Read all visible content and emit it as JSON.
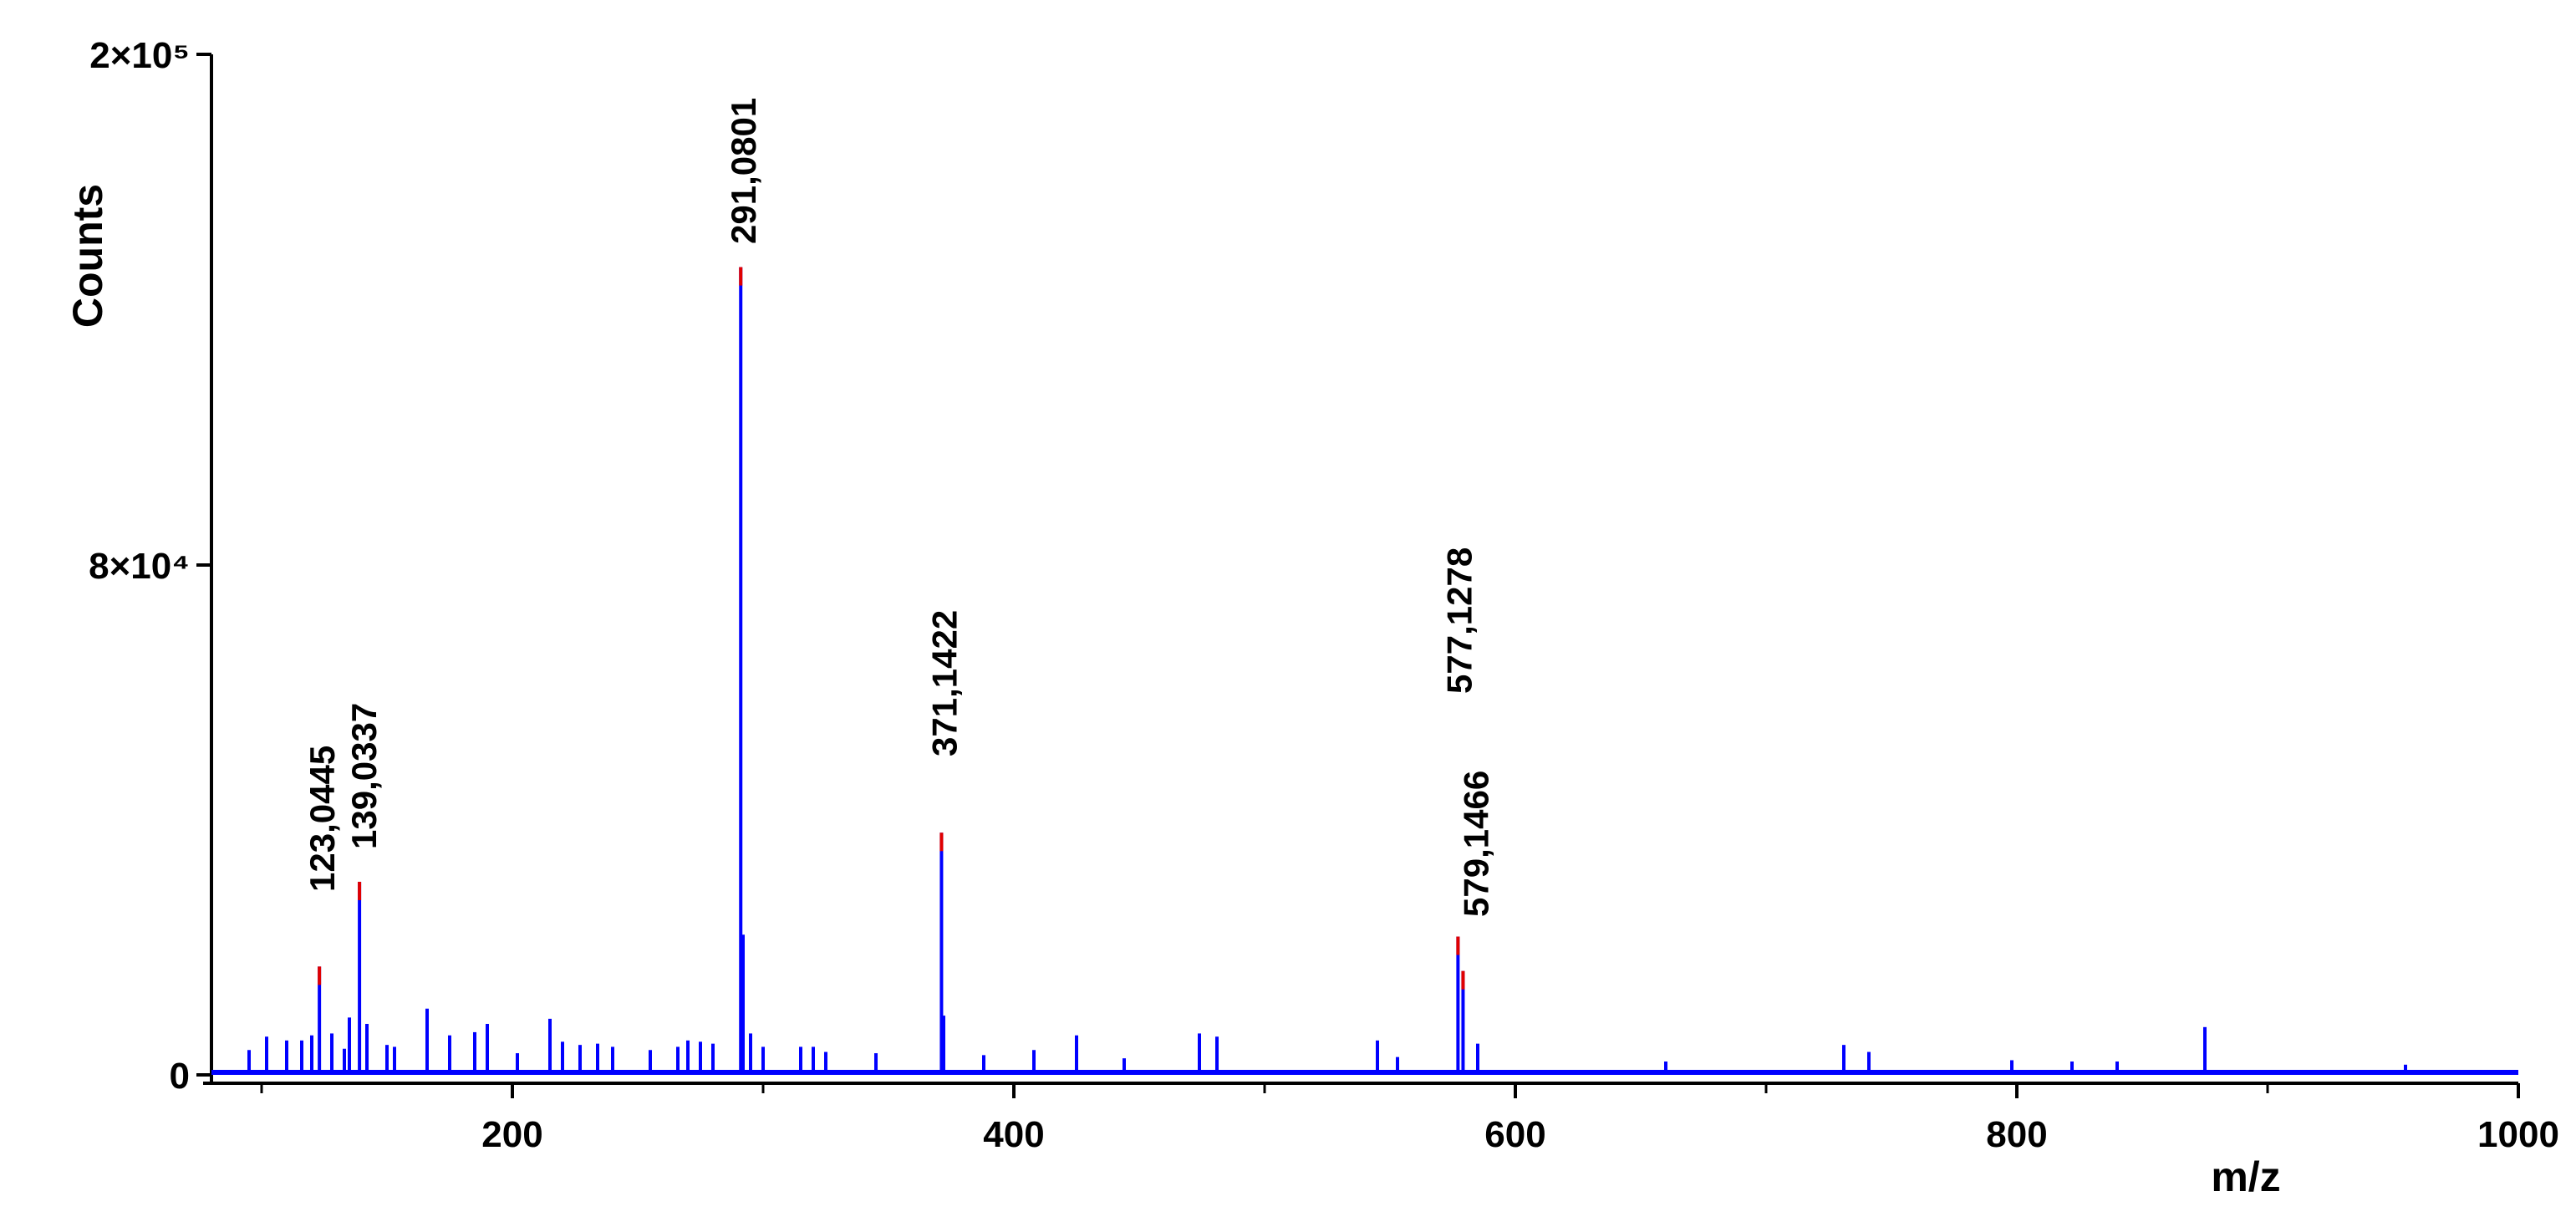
{
  "chart_data": {
    "type": "stick",
    "x_label": "m/z",
    "y_label": "Counts",
    "xlim": [
      80,
      1000
    ],
    "ylim": [
      0,
      200000
    ],
    "xticks": [
      200,
      400,
      600,
      800,
      1000
    ],
    "xminor_ticks": [
      100,
      300,
      500,
      700,
      900
    ],
    "yticks": [
      0,
      {
        "value": 80000,
        "label": "8×10⁴"
      },
      {
        "value": 200000,
        "label": "2×10⁵"
      }
    ],
    "color": "#0000ff",
    "apex_color": "#e00000",
    "x": [
      95,
      102,
      110,
      116,
      120,
      123.0445,
      128,
      133,
      135,
      139.0337,
      142,
      150,
      153,
      166,
      175,
      185,
      190,
      202,
      215,
      220,
      227,
      234,
      240,
      255,
      266,
      270,
      275,
      280,
      291.0801,
      292,
      295,
      300,
      315,
      320,
      325,
      345,
      371.1422,
      372,
      388,
      408,
      425,
      444,
      474,
      481,
      545,
      553,
      577.1278,
      579.1466,
      585,
      660,
      731,
      741,
      798,
      822,
      840,
      875,
      955
    ],
    "values": [
      3900,
      6000,
      5400,
      5400,
      6200,
      17000,
      6500,
      4100,
      9000,
      30300,
      8000,
      4700,
      4400,
      10400,
      6200,
      6700,
      8000,
      3400,
      8800,
      5200,
      4700,
      4900,
      4400,
      3900,
      4400,
      5400,
      5200,
      4900,
      150000,
      22000,
      6500,
      4400,
      4400,
      4400,
      3600,
      3400,
      38000,
      9300,
      3100,
      3900,
      6200,
      2600,
      6500,
      6000,
      5400,
      2800,
      21700,
      16300,
      4900,
      2100,
      4700,
      3600,
      2300,
      2100,
      2100,
      7500,
      1600
    ],
    "peak_labels": [
      {
        "label": "123,0445",
        "x": 123.0445
      },
      {
        "label": "139,0337",
        "x": 139.0337
      },
      {
        "label": "291,0801",
        "x": 291.0801
      },
      {
        "label": "371,1422",
        "x": 371.1422
      },
      {
        "label": "577,1278",
        "x": 577.1278
      },
      {
        "label": "579,1466",
        "x": 579.1466
      }
    ]
  }
}
